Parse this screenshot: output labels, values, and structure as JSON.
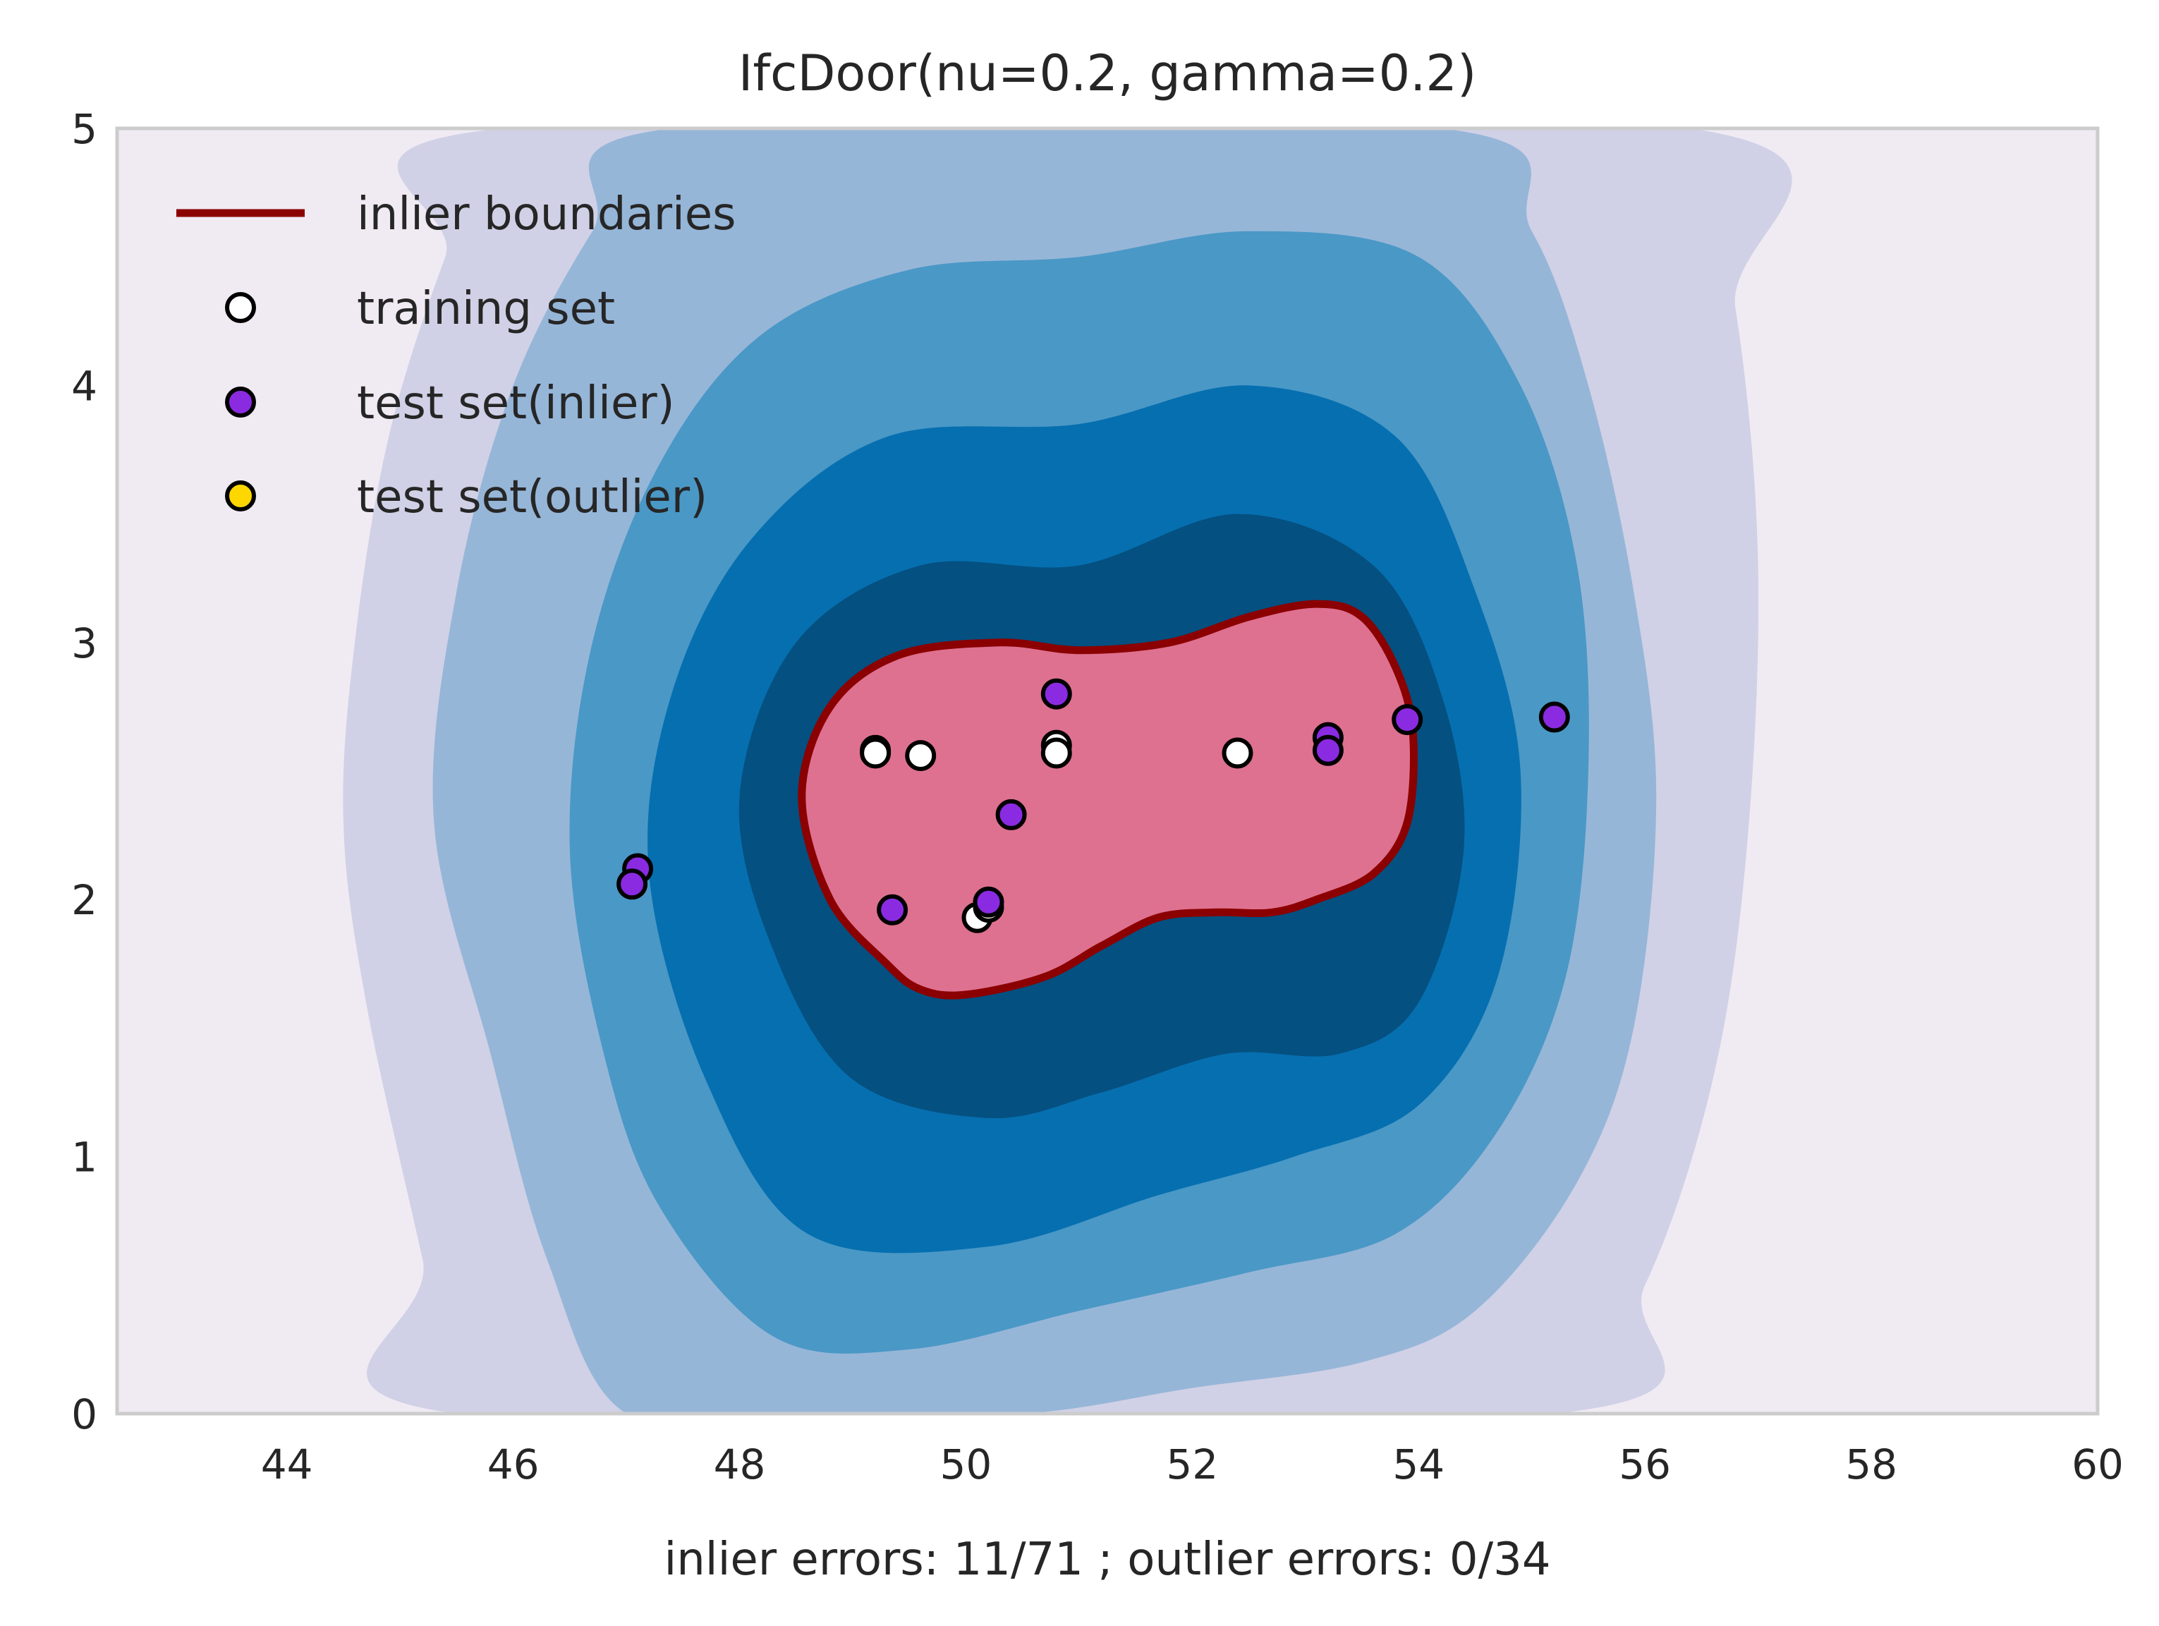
{
  "chart_data": {
    "type": "scatter",
    "title": "IfcDoor(nu=0.2, gamma=0.2)",
    "xlabel": "inlier errors: 11/71 ; outlier errors: 0/34",
    "ylabel": "",
    "xlim": [
      42.5,
      60
    ],
    "ylim": [
      0,
      5
    ],
    "x_ticks": [
      44,
      46,
      48,
      50,
      52,
      54,
      56,
      58,
      60
    ],
    "y_ticks": [
      0,
      1,
      2,
      3,
      4,
      5
    ],
    "grid": false,
    "legend_placement": "top-left",
    "legend": [
      {
        "label": "inlier boundaries",
        "kind": "line",
        "color": "#8b0000"
      },
      {
        "label": "training set",
        "kind": "marker",
        "color": "#ffffff"
      },
      {
        "label": "test set(inlier)",
        "kind": "marker",
        "color": "#8a2be2"
      },
      {
        "label": "test set(outlier)",
        "kind": "marker",
        "color": "#ffd700"
      }
    ],
    "colors": {
      "background": "#f0eaf3",
      "levels": [
        "#d0d1e6",
        "#96b6d8",
        "#4a98c6",
        "#066fb0",
        "#045080"
      ],
      "inlier_region": "#de7190",
      "boundary": "#8b0000",
      "axes_frame": "#cccccc"
    },
    "contour_levels": [
      [
        [
          45.5,
          0
        ],
        [
          45.2,
          0.6
        ],
        [
          44.7,
          1.6
        ],
        [
          44.5,
          2.3
        ],
        [
          44.6,
          3.0
        ],
        [
          44.9,
          3.8
        ],
        [
          45.4,
          4.5
        ],
        [
          45.9,
          5
        ],
        [
          56.4,
          5
        ],
        [
          56.8,
          4.3
        ],
        [
          57.0,
          3.3
        ],
        [
          56.9,
          2.2
        ],
        [
          56.6,
          1.3
        ],
        [
          56.0,
          0.5
        ],
        [
          55.2,
          0
        ]
      ],
      [
        [
          47.0,
          0
        ],
        [
          46.3,
          0.6
        ],
        [
          45.8,
          1.4
        ],
        [
          45.3,
          2.3
        ],
        [
          45.5,
          3.2
        ],
        [
          46.0,
          4.0
        ],
        [
          46.7,
          4.6
        ],
        [
          47.4,
          5.0
        ],
        [
          54.2,
          5.0
        ],
        [
          55.0,
          4.6
        ],
        [
          55.5,
          4.0
        ],
        [
          55.9,
          3.2
        ],
        [
          56.1,
          2.4
        ],
        [
          55.9,
          1.5
        ],
        [
          55.4,
          0.9
        ],
        [
          54.5,
          0.4
        ],
        [
          53.5,
          0.2
        ],
        [
          52.0,
          0.1
        ],
        [
          50.5,
          0
        ],
        [
          48.5,
          0
        ]
      ],
      [
        [
          48.3,
          0.3
        ],
        [
          47.3,
          0.8
        ],
        [
          46.8,
          1.4
        ],
        [
          46.5,
          2.2
        ],
        [
          46.7,
          3.0
        ],
        [
          47.3,
          3.7
        ],
        [
          48.2,
          4.2
        ],
        [
          49.5,
          4.45
        ],
        [
          51.0,
          4.5
        ],
        [
          52.5,
          4.6
        ],
        [
          54.0,
          4.5
        ],
        [
          54.9,
          4.0
        ],
        [
          55.4,
          3.3
        ],
        [
          55.5,
          2.5
        ],
        [
          55.3,
          1.7
        ],
        [
          54.7,
          1.1
        ],
        [
          53.8,
          0.7
        ],
        [
          52.5,
          0.55
        ],
        [
          51.0,
          0.4
        ],
        [
          49.5,
          0.25
        ]
      ],
      [
        [
          48.6,
          0.7
        ],
        [
          47.7,
          1.3
        ],
        [
          47.2,
          2.1
        ],
        [
          47.4,
          2.8
        ],
        [
          48.1,
          3.4
        ],
        [
          49.3,
          3.8
        ],
        [
          51.0,
          3.85
        ],
        [
          52.5,
          4.0
        ],
        [
          53.8,
          3.8
        ],
        [
          54.5,
          3.2
        ],
        [
          54.9,
          2.5
        ],
        [
          54.7,
          1.7
        ],
        [
          54.0,
          1.2
        ],
        [
          52.9,
          1.0
        ],
        [
          51.7,
          0.85
        ],
        [
          50.2,
          0.65
        ]
      ],
      [
        [
          49.0,
          1.3
        ],
        [
          48.3,
          1.8
        ],
        [
          48.0,
          2.4
        ],
        [
          48.5,
          3.0
        ],
        [
          49.6,
          3.3
        ],
        [
          51.0,
          3.3
        ],
        [
          52.4,
          3.5
        ],
        [
          53.6,
          3.3
        ],
        [
          54.2,
          2.8
        ],
        [
          54.4,
          2.2
        ],
        [
          54.0,
          1.6
        ],
        [
          53.3,
          1.4
        ],
        [
          52.3,
          1.4
        ],
        [
          51.2,
          1.25
        ],
        [
          50.2,
          1.15
        ]
      ]
    ],
    "boundary": [
      [
        49.3,
        1.75
      ],
      [
        48.8,
        2.0
      ],
      [
        48.55,
        2.4
      ],
      [
        48.8,
        2.75
      ],
      [
        49.4,
        2.95
      ],
      [
        50.3,
        3.0
      ],
      [
        51.0,
        2.97
      ],
      [
        51.8,
        3.0
      ],
      [
        52.5,
        3.1
      ],
      [
        53.1,
        3.15
      ],
      [
        53.5,
        3.1
      ],
      [
        53.8,
        2.9
      ],
      [
        53.95,
        2.65
      ],
      [
        53.9,
        2.3
      ],
      [
        53.6,
        2.1
      ],
      [
        53.1,
        2.0
      ],
      [
        52.7,
        1.95
      ],
      [
        52.2,
        1.95
      ],
      [
        51.7,
        1.93
      ],
      [
        51.2,
        1.82
      ],
      [
        50.7,
        1.7
      ],
      [
        50.0,
        1.63
      ],
      [
        49.6,
        1.65
      ]
    ],
    "series": [
      {
        "name": "training set",
        "color": "#ffffff",
        "points": [
          [
            49.2,
            2.58
          ],
          [
            49.2,
            2.57
          ],
          [
            49.6,
            2.56
          ],
          [
            50.8,
            2.6
          ],
          [
            50.8,
            2.57
          ],
          [
            52.4,
            2.57
          ],
          [
            50.1,
            1.93
          ],
          [
            50.2,
            1.97
          ]
        ]
      },
      {
        "name": "test set(inlier)",
        "color": "#8a2be2",
        "points": [
          [
            47.1,
            2.12
          ],
          [
            47.05,
            2.06
          ],
          [
            49.35,
            1.96
          ],
          [
            50.2,
            1.99
          ],
          [
            50.4,
            2.33
          ],
          [
            50.8,
            2.8
          ],
          [
            53.2,
            2.63
          ],
          [
            53.2,
            2.58
          ],
          [
            53.9,
            2.7
          ],
          [
            55.2,
            2.71
          ]
        ]
      },
      {
        "name": "test set(outlier)",
        "color": "#ffd700",
        "points": []
      }
    ]
  }
}
